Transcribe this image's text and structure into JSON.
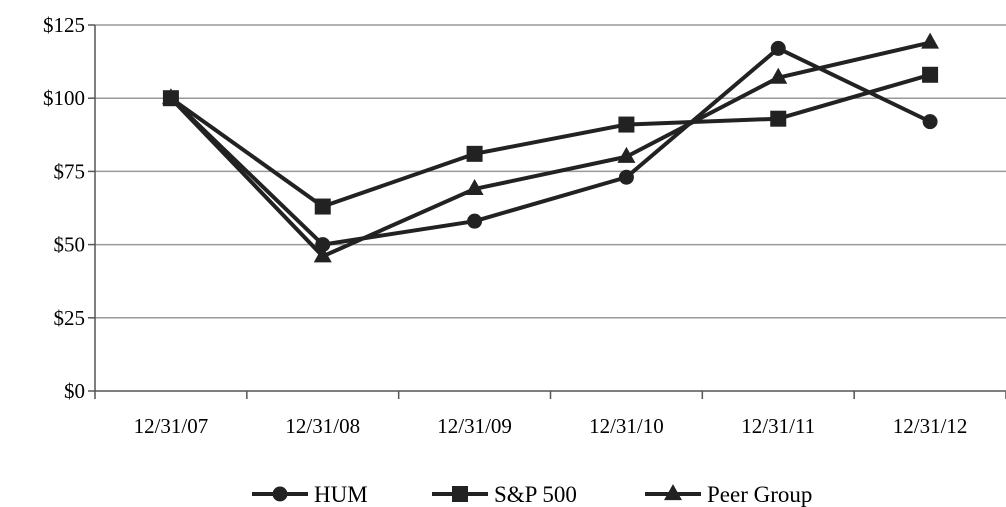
{
  "chart_data": {
    "type": "line",
    "categories": [
      "12/31/07",
      "12/31/08",
      "12/31/09",
      "12/31/10",
      "12/31/11",
      "12/31/12"
    ],
    "series": [
      {
        "name": "HUM",
        "marker": "circle",
        "values": [
          100,
          50,
          58,
          73,
          117,
          92
        ]
      },
      {
        "name": "S&P 500",
        "marker": "square",
        "values": [
          100,
          63,
          81,
          91,
          93,
          108
        ]
      },
      {
        "name": "Peer Group",
        "marker": "triangle",
        "values": [
          100,
          46,
          69,
          80,
          107,
          119
        ]
      }
    ],
    "yticks": [
      "$0",
      "$25",
      "$50",
      "$75",
      "$100",
      "$125"
    ],
    "ylim": [
      0,
      125
    ],
    "grid": true,
    "legend_position": "bottom-center",
    "colors": {
      "line": "#222222",
      "grid": "#999999",
      "axis": "#555555"
    }
  }
}
